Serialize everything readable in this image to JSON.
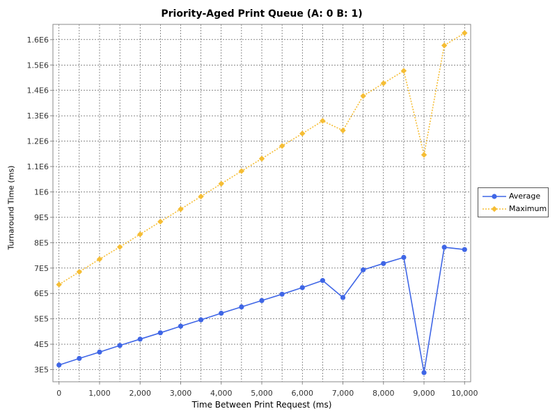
{
  "chart_data": {
    "type": "line",
    "title": "Priority-Aged Print Queue (A: 0 B: 1)",
    "xlabel": "Time Between Print Request (ms)",
    "ylabel": "Turnaround Time (ms)",
    "x": [
      0,
      500,
      1000,
      1500,
      2000,
      2500,
      3000,
      3500,
      4000,
      4500,
      5000,
      5500,
      6000,
      6500,
      7000,
      7500,
      8000,
      8500,
      9000,
      9500,
      10000
    ],
    "xlim": [
      -150,
      10150
    ],
    "ylim": [
      252000,
      1660000
    ],
    "x_ticks": [
      0,
      1000,
      2000,
      3000,
      4000,
      5000,
      6000,
      7000,
      8000,
      9000,
      10000
    ],
    "x_tick_labels": [
      "0",
      "1,000",
      "2,000",
      "3,000",
      "4,000",
      "5,000",
      "6,000",
      "7,000",
      "8,000",
      "9,000",
      "10,000"
    ],
    "x_grid": [
      0,
      500,
      1000,
      1500,
      2000,
      2500,
      3000,
      3500,
      4000,
      4500,
      5000,
      5500,
      6000,
      6500,
      7000,
      7500,
      8000,
      8500,
      9000,
      9500,
      10000
    ],
    "y_ticks": [
      300000,
      400000,
      500000,
      600000,
      700000,
      800000,
      900000,
      1000000,
      1100000,
      1200000,
      1300000,
      1400000,
      1500000,
      1600000
    ],
    "y_tick_labels": [
      "3E5",
      "4E5",
      "5E5",
      "6E5",
      "7E5",
      "8E5",
      "9E5",
      "1E6",
      "1.1E6",
      "1.2E6",
      "1.3E6",
      "1.4E6",
      "1.5E6",
      "1.6E6"
    ],
    "grid": true,
    "legend_position": "right",
    "series": [
      {
        "name": "Average",
        "color": "#3f66e6",
        "marker": "circle",
        "line_style": "solid",
        "values": [
          318000,
          344000,
          369000,
          395000,
          420000,
          445000,
          471000,
          496000,
          522000,
          547000,
          572000,
          597000,
          623000,
          651000,
          584000,
          693000,
          718000,
          742000,
          288000,
          782000,
          773000
        ]
      },
      {
        "name": "Maximum",
        "color": "#f5bd34",
        "marker": "diamond",
        "line_style": "dotted",
        "values": [
          635000,
          685000,
          735000,
          783000,
          833000,
          883000,
          932000,
          982000,
          1032000,
          1082000,
          1131000,
          1181000,
          1230000,
          1280000,
          1242000,
          1378000,
          1428000,
          1477000,
          1146000,
          1577000,
          1626000
        ]
      }
    ]
  }
}
